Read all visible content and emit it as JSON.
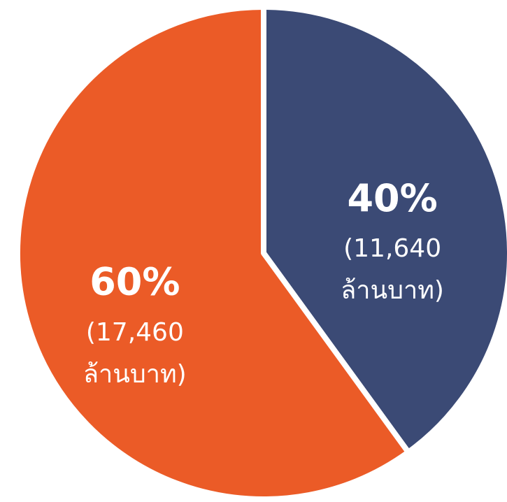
{
  "chart_data": {
    "type": "pie",
    "categories": [
      "40%",
      "60%"
    ],
    "values": [
      40,
      60
    ],
    "value_labels": [
      "40%",
      "60%"
    ],
    "amount_labels": [
      "(11,640 ล้านบาท)",
      "(17,460 ล้านบาท)"
    ],
    "colors": [
      "#3b4a75",
      "#eb5b27"
    ]
  }
}
